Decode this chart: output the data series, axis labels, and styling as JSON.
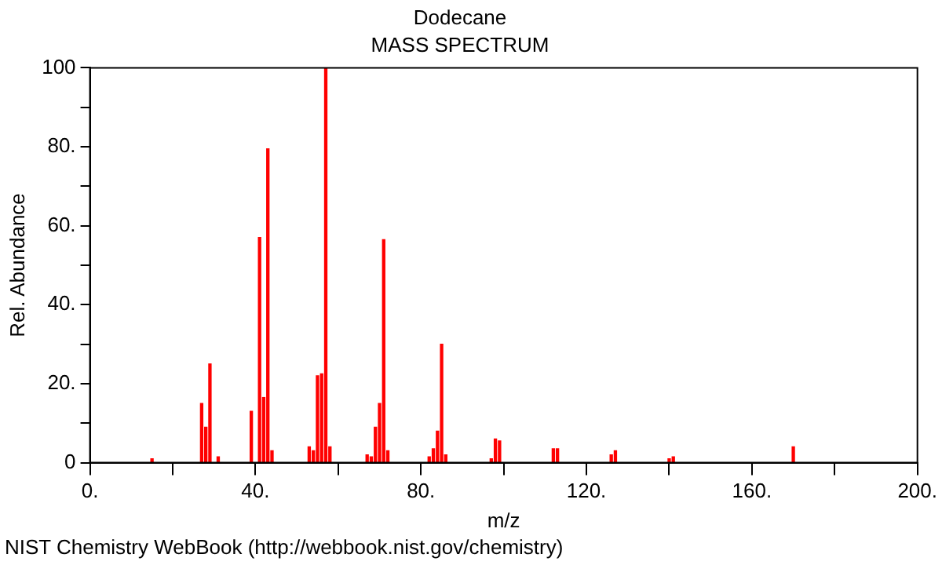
{
  "chart_data": {
    "type": "bar",
    "title": "Dodecane",
    "subtitle": "MASS SPECTRUM",
    "xlabel": "m/z",
    "ylabel": "Rel. Abundance",
    "x": [
      15,
      27,
      28,
      29,
      31,
      39,
      41,
      42,
      43,
      44,
      53,
      54,
      55,
      56,
      57,
      58,
      67,
      68,
      69,
      70,
      71,
      72,
      82,
      83,
      84,
      85,
      86,
      97,
      98,
      99,
      112,
      113,
      126,
      127,
      140,
      141,
      170
    ],
    "values": [
      1,
      15,
      9,
      25,
      1.5,
      13,
      57,
      16.5,
      79.5,
      3,
      4,
      3,
      22,
      22.5,
      100,
      4,
      2,
      1.5,
      9,
      15,
      56.5,
      3,
      1.5,
      3.5,
      8,
      30,
      2,
      1,
      6,
      5.5,
      3.5,
      3.5,
      2,
      3,
      1,
      1.5,
      4
    ],
    "color": "#ff0000",
    "xlim": [
      0,
      200
    ],
    "xticks": [
      {
        "value": 0,
        "label": "0."
      },
      {
        "value": 20,
        "label": null
      },
      {
        "value": 40,
        "label": "40."
      },
      {
        "value": 60,
        "label": null
      },
      {
        "value": 80,
        "label": "80."
      },
      {
        "value": 100,
        "label": null
      },
      {
        "value": 120,
        "label": "120."
      },
      {
        "value": 140,
        "label": null
      },
      {
        "value": 160,
        "label": "160."
      },
      {
        "value": 180,
        "label": null
      },
      {
        "value": 200,
        "label": "200."
      }
    ],
    "ylim": [
      0,
      100
    ],
    "yticks": [
      0,
      {
        "value": 10,
        "label": null
      },
      {
        "value": 20,
        "label": "20."
      },
      {
        "value": 30,
        "label": null
      },
      {
        "value": 40,
        "label": "40."
      },
      {
        "value": 50,
        "label": null
      },
      {
        "value": 60,
        "label": "60."
      },
      {
        "value": 70,
        "label": null
      },
      {
        "value": 80,
        "label": "80."
      },
      {
        "value": 90,
        "label": null
      },
      {
        "value": 100,
        "label": "100"
      }
    ],
    "grid": false,
    "legend": false,
    "annotations": [
      "NIST Chemistry WebBook (http://webbook.nist.gov/chemistry)"
    ]
  }
}
